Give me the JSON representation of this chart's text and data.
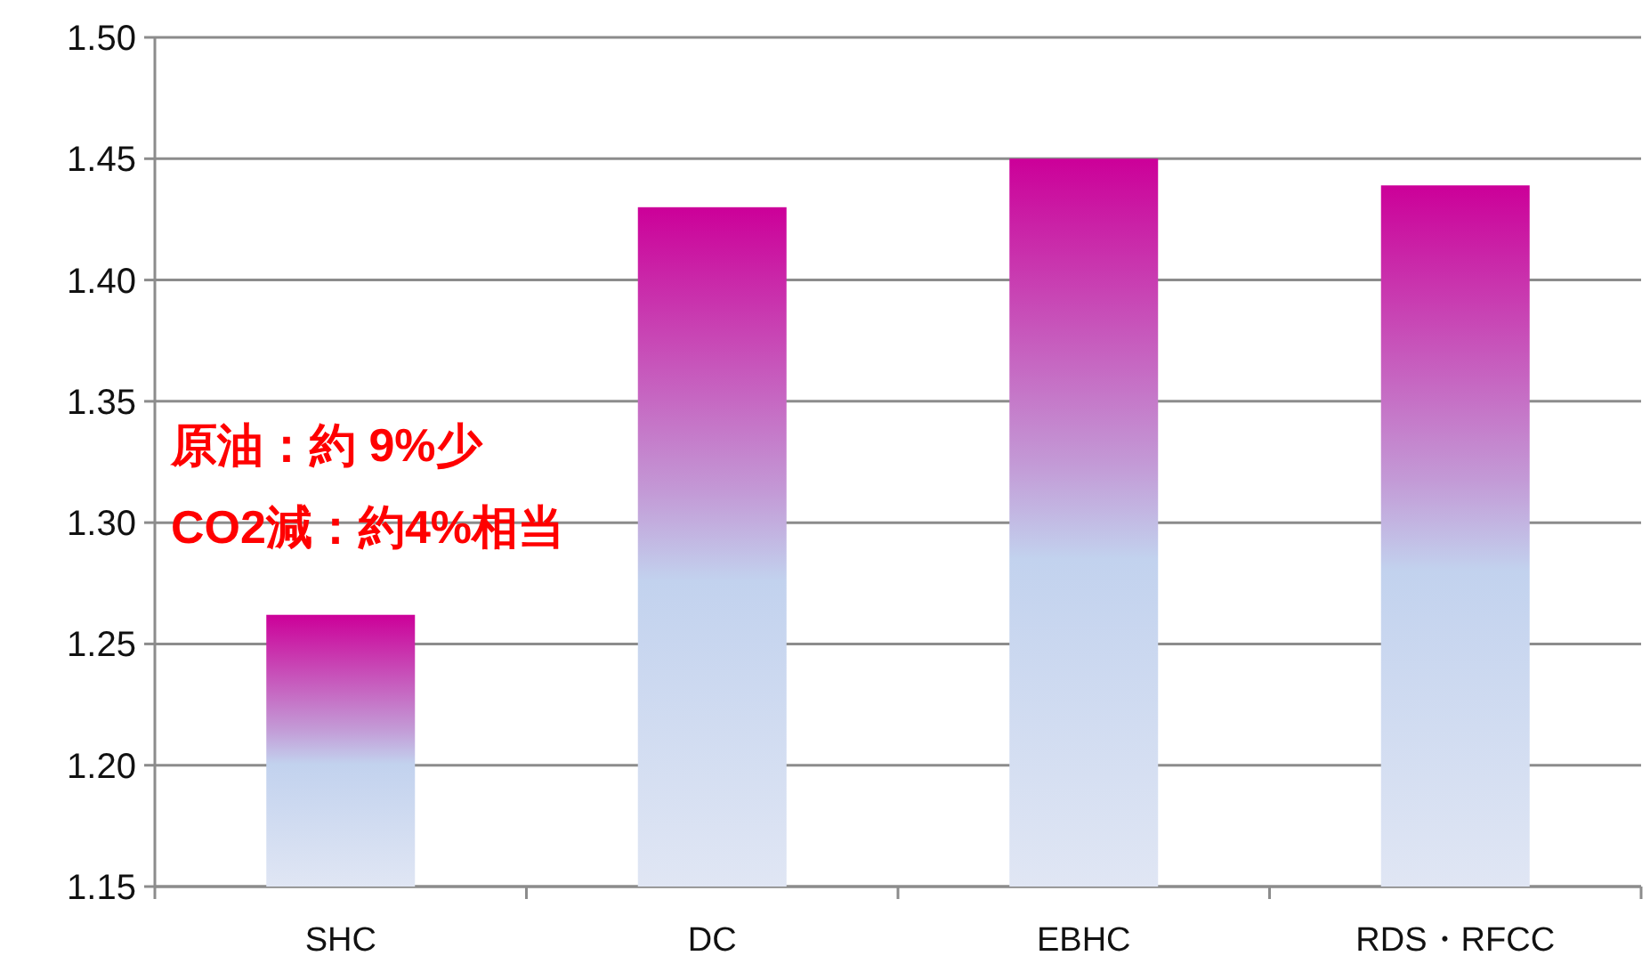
{
  "chart_data": {
    "type": "bar",
    "categories": [
      "SHC",
      "DC",
      "EBHC",
      "RDS・RFCC"
    ],
    "values": [
      1.262,
      1.43,
      1.45,
      1.439
    ],
    "color": "#cc0099",
    "ylim": [
      1.15,
      1.5
    ],
    "yticks": [
      {
        "value": 1.15,
        "label": "1.15"
      },
      {
        "value": 1.2,
        "label": "1.20"
      },
      {
        "value": 1.25,
        "label": "1.25"
      },
      {
        "value": 1.3,
        "label": "1.30"
      },
      {
        "value": 1.35,
        "label": "1.35"
      },
      {
        "value": 1.4,
        "label": "1.40"
      },
      {
        "value": 1.45,
        "label": "1.45"
      },
      {
        "value": 1.5,
        "label": "1.50"
      }
    ],
    "grid": "y",
    "annotations": [
      "原油：約 9%少",
      "CO2減：約4%相当"
    ]
  }
}
